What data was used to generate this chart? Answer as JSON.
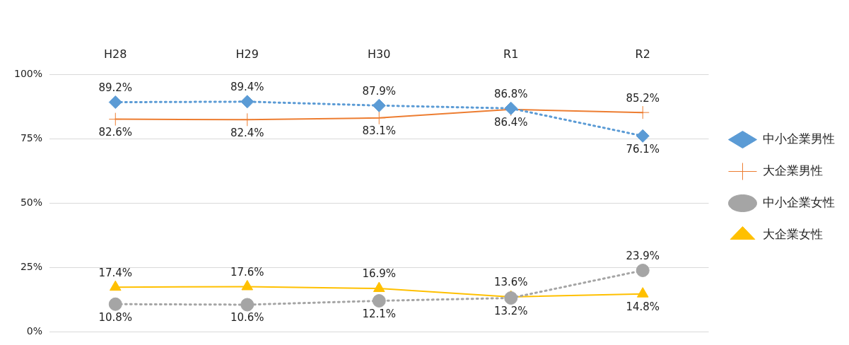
{
  "chart_data": {
    "type": "line",
    "categories": [
      "H28",
      "H29",
      "H30",
      "R1",
      "R2"
    ],
    "series": [
      {
        "name": "中小企業男性",
        "color": "#5b9bd5",
        "marker": "diamond",
        "line_style": "dotted",
        "values": [
          89.2,
          89.4,
          87.9,
          86.8,
          76.1
        ],
        "value_labels": [
          "89.2%",
          "89.4%",
          "87.9%",
          "86.8%",
          "76.1%"
        ]
      },
      {
        "name": "大企業男性",
        "color": "#ed7d31",
        "marker": "cross",
        "line_style": "solid",
        "values": [
          82.6,
          82.4,
          83.1,
          86.4,
          85.2
        ],
        "value_labels": [
          "82.6%",
          "82.4%",
          "83.1%",
          "86.4%",
          "85.2%"
        ]
      },
      {
        "name": "中小企業女性",
        "color": "#a5a5a5",
        "marker": "circle",
        "line_style": "dotted",
        "values": [
          10.8,
          10.6,
          12.1,
          13.2,
          23.9
        ],
        "value_labels": [
          "10.8%",
          "10.6%",
          "12.1%",
          "13.2%",
          "23.9%"
        ]
      },
      {
        "name": "大企業女性",
        "color": "#ffc000",
        "marker": "triangle",
        "line_style": "solid",
        "values": [
          17.4,
          17.6,
          16.9,
          13.6,
          14.8
        ],
        "value_labels": [
          "17.4%",
          "17.6%",
          "16.9%",
          "13.6%",
          "14.8%"
        ]
      }
    ],
    "ylim": [
      0,
      100
    ],
    "yticks": [
      {
        "value": 0,
        "label": "0%"
      },
      {
        "value": 25,
        "label": "25%"
      },
      {
        "value": 50,
        "label": "50%"
      },
      {
        "value": 75,
        "label": "75%"
      },
      {
        "value": 100,
        "label": "100%"
      }
    ],
    "grid": "y",
    "legend": "right"
  }
}
